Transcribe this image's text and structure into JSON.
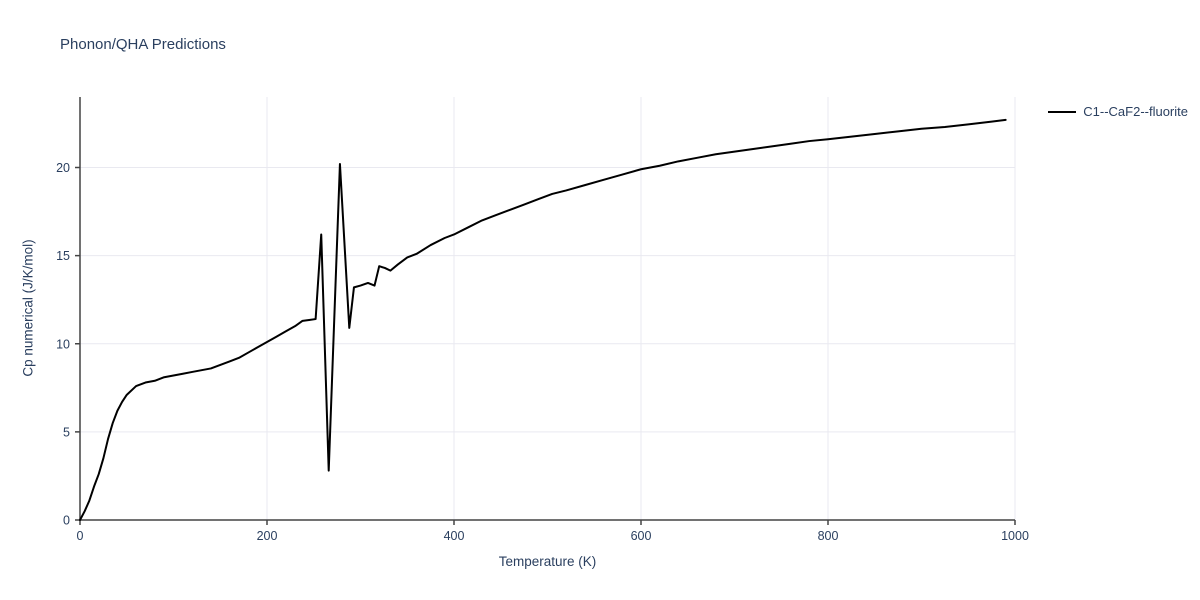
{
  "title": "Phonon/QHA Predictions",
  "colors": {
    "text": "#2a3f5f",
    "grid": "#e9e9f0",
    "axis_line": "#444444",
    "series_line": "#000000",
    "background": "#ffffff"
  },
  "legend": {
    "items": [
      {
        "label": "C1--CaF2--fluorite",
        "color": "#000000"
      }
    ]
  },
  "chart_data": {
    "type": "line",
    "title": "Phonon/QHA Predictions",
    "xlabel": "Temperature (K)",
    "ylabel": "Cp numerical (J/K/mol)",
    "xlim": [
      0,
      1000
    ],
    "ylim": [
      0,
      24
    ],
    "x_ticks": [
      0,
      200,
      400,
      600,
      800,
      1000
    ],
    "y_ticks": [
      0,
      5,
      10,
      15,
      20
    ],
    "grid": true,
    "legend_position": "top-right-outside",
    "series": [
      {
        "name": "C1--CaF2--fluorite",
        "color": "#000000",
        "x": [
          0,
          5,
          10,
          15,
          20,
          25,
          30,
          35,
          40,
          45,
          50,
          60,
          70,
          80,
          90,
          100,
          110,
          120,
          130,
          140,
          150,
          160,
          170,
          180,
          190,
          200,
          210,
          220,
          230,
          238,
          245,
          252,
          258,
          266,
          278,
          288,
          293,
          300,
          308,
          315,
          320,
          326,
          332,
          340,
          350,
          360,
          375,
          390,
          400,
          415,
          430,
          445,
          460,
          475,
          490,
          505,
          520,
          540,
          560,
          580,
          600,
          620,
          640,
          660,
          680,
          700,
          720,
          740,
          760,
          780,
          800,
          825,
          850,
          875,
          900,
          925,
          950,
          975,
          990
        ],
        "y": [
          0,
          0.5,
          1.1,
          1.9,
          2.6,
          3.5,
          4.6,
          5.5,
          6.2,
          6.7,
          7.1,
          7.6,
          7.8,
          7.9,
          8.1,
          8.2,
          8.3,
          8.4,
          8.5,
          8.6,
          8.8,
          9.0,
          9.2,
          9.5,
          9.8,
          10.1,
          10.4,
          10.7,
          11.0,
          11.3,
          11.35,
          11.4,
          16.2,
          2.8,
          20.2,
          10.9,
          13.2,
          13.3,
          13.45,
          13.3,
          14.4,
          14.3,
          14.15,
          14.5,
          14.9,
          15.1,
          15.6,
          16.0,
          16.2,
          16.6,
          17.0,
          17.3,
          17.6,
          17.9,
          18.2,
          18.5,
          18.7,
          19.0,
          19.3,
          19.6,
          19.9,
          20.1,
          20.35,
          20.55,
          20.75,
          20.9,
          21.05,
          21.2,
          21.35,
          21.5,
          21.6,
          21.75,
          21.9,
          22.05,
          22.2,
          22.3,
          22.45,
          22.6,
          22.7
        ]
      }
    ]
  }
}
